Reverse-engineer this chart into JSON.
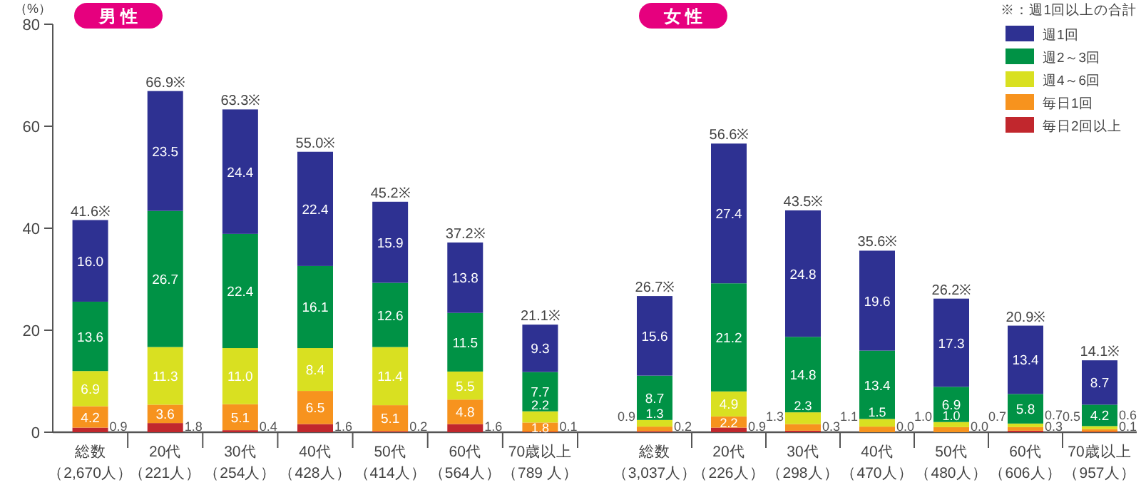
{
  "chart_data": [
    {
      "type": "bar",
      "stacked": true,
      "title": "男 性",
      "ylabel": "（%）",
      "ylim": [
        0,
        80
      ],
      "yticks": [
        0,
        20,
        40,
        60,
        80
      ],
      "categories": [
        "総数（2,670人）",
        "20代（221人）",
        "30代（254人）",
        "40代（428人）",
        "50代（414人）",
        "60代（564人）",
        "70歳以上（789 人）"
      ],
      "series": [
        {
          "color": "#c1272d",
          "values": [
            0.9,
            1.8,
            0.4,
            1.6,
            0.2,
            1.6,
            0.1
          ],
          "value_labels": [
            "0.9",
            "1.8",
            "0.4",
            "1.6",
            "0.2",
            "1.6",
            "0.1"
          ]
        },
        {
          "color": "#f7931e",
          "values": [
            4.2,
            3.6,
            5.1,
            6.5,
            5.1,
            4.8,
            1.8
          ],
          "value_labels": [
            "4.2",
            "3.6",
            "5.1",
            "6.5",
            "5.1",
            "4.8",
            "1.8"
          ]
        },
        {
          "color": "#d9e021",
          "values": [
            6.9,
            11.3,
            11.0,
            8.4,
            11.4,
            5.5,
            2.2
          ],
          "value_labels": [
            "6.9",
            "11.3",
            "11.0",
            "8.4",
            "11.4",
            "5.5",
            "2.2"
          ]
        },
        {
          "color": "#009245",
          "values": [
            13.6,
            26.7,
            22.4,
            16.1,
            12.6,
            11.5,
            7.7
          ],
          "value_labels": [
            "13.6",
            "26.7",
            "22.4",
            "16.1",
            "12.6",
            "11.5",
            "7.7"
          ]
        },
        {
          "color": "#2e3192",
          "values": [
            16.0,
            23.5,
            24.4,
            22.4,
            15.9,
            13.8,
            9.3
          ],
          "value_labels": [
            "16.0",
            "23.5",
            "24.4",
            "22.4",
            "15.9",
            "13.8",
            "9.3"
          ]
        }
      ],
      "totals": [
        "41.6※",
        "66.9※",
        "63.3※",
        "55.0※",
        "45.2※",
        "37.2※",
        "21.1※"
      ]
    },
    {
      "type": "bar",
      "stacked": true,
      "title": "女 性",
      "ylim": [
        0,
        80
      ],
      "tick_labels": "x",
      "legend": "top right",
      "annotations": [
        "※：週1回以上の合計"
      ],
      "categories": [
        "総数（3,037人）",
        "20代（226人）",
        "30代（298人）",
        "40代（470人）",
        "50代（480人）",
        "60代（606人）",
        "70歳以上（957人）"
      ],
      "series": [
        {
          "name": "毎日2回以上",
          "color": "#c1272d",
          "values": [
            0.2,
            0.9,
            0.3,
            0.0,
            0.0,
            0.3,
            0.1
          ],
          "value_labels": [
            "0.2",
            "0.9",
            "0.3",
            "0.0",
            "0.0",
            "0.3",
            "0.1"
          ]
        },
        {
          "name": "毎日1回",
          "color": "#f7931e",
          "values": [
            0.9,
            2.2,
            1.3,
            1.1,
            1.0,
            0.7,
            0.5
          ],
          "value_labels": [
            "0.9",
            "2.2",
            "1.3",
            "1.1",
            "1.0",
            "0.7",
            "0.5"
          ]
        },
        {
          "name": "週4～6回",
          "color": "#d9e021",
          "values": [
            1.3,
            4.9,
            2.3,
            1.5,
            1.0,
            0.7,
            0.6
          ],
          "value_labels": [
            "1.3",
            "4.9",
            "2.3",
            "1.5",
            "1.0",
            "0.7",
            "0.6"
          ]
        },
        {
          "name": "週2～3回",
          "color": "#009245",
          "values": [
            8.7,
            21.2,
            14.8,
            13.4,
            6.9,
            5.8,
            4.2
          ],
          "value_labels": [
            "8.7",
            "21.2",
            "14.8",
            "13.4",
            "6.9",
            "5.8",
            "4.2"
          ]
        },
        {
          "name": "週1回",
          "color": "#2e3192",
          "values": [
            15.6,
            27.4,
            24.8,
            19.6,
            17.3,
            13.4,
            8.7
          ],
          "value_labels": [
            "15.6",
            "27.4",
            "24.8",
            "19.6",
            "17.3",
            "13.4",
            "8.7"
          ]
        }
      ],
      "totals": [
        "26.7※",
        "56.6※",
        "43.5※",
        "35.6※",
        "26.2※",
        "20.9※",
        "14.1※"
      ]
    }
  ]
}
